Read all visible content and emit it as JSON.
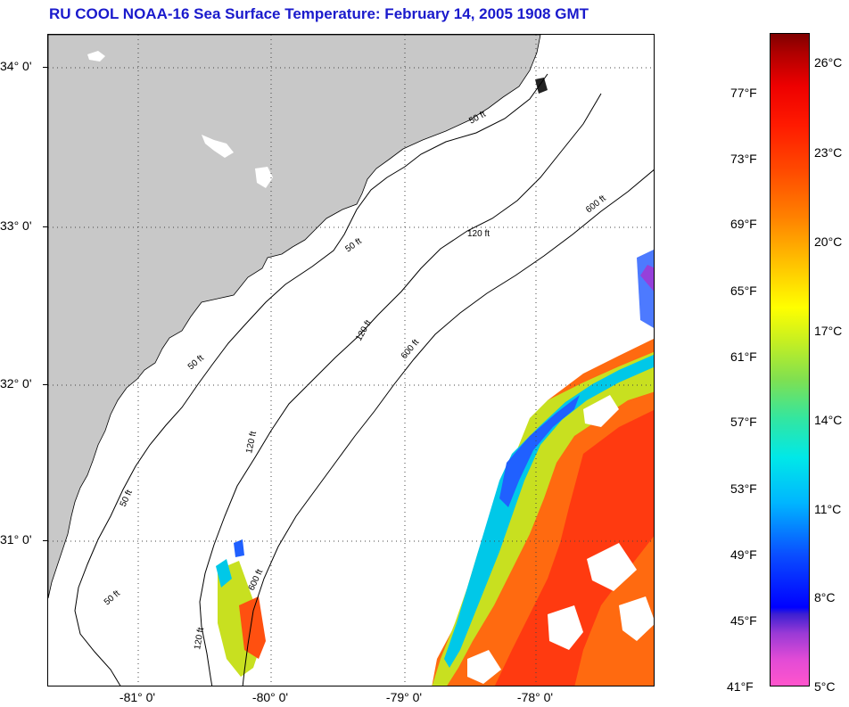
{
  "title": "RU COOL  NOAA-16  Sea Surface Temperature:  February 14, 2005 1908 GMT",
  "map": {
    "lat_labels": [
      "34° 0'",
      "33° 0'",
      "32° 0'",
      "31° 0'"
    ],
    "lon_labels": [
      "-81° 0'",
      "-80° 0'",
      "-79° 0'",
      "-78° 0'"
    ],
    "isobath_labels": [
      "50 ft",
      "120 ft",
      "600 ft"
    ],
    "colors": {
      "land": "#c8c8c8",
      "ocean_nodata": "#ffffff",
      "contour": "#000000",
      "grid": "#000000"
    }
  },
  "colorbar": {
    "fahrenheit_labels": [
      "77°F",
      "73°F",
      "69°F",
      "65°F",
      "61°F",
      "57°F",
      "53°F",
      "49°F",
      "45°F",
      "41°F"
    ],
    "celsius_labels": [
      "26°C",
      "23°C",
      "20°C",
      "17°C",
      "14°C",
      "11°C",
      "8°C",
      "5°C"
    ],
    "min_celsius": 5,
    "max_celsius": 27.5
  }
}
